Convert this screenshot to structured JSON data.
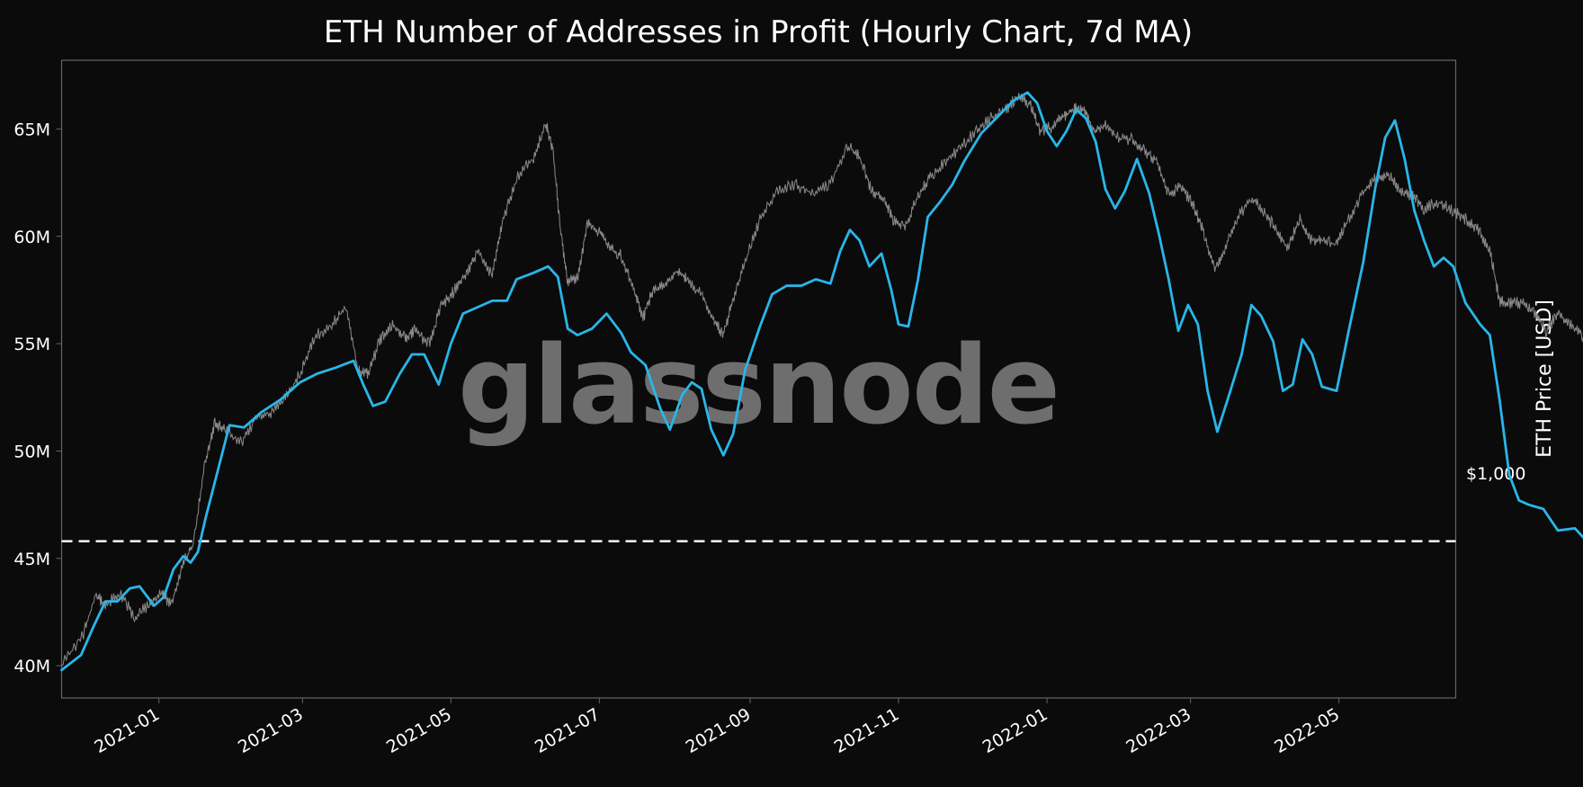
{
  "chart_data": {
    "type": "line",
    "title": "ETH Number of Addresses in Profit (Hourly Chart, 7d MA)",
    "watermark": "glassnode",
    "x_start": "2020-11-22",
    "x_end": "2022-06-18",
    "x_tick_labels": [
      "2021-01",
      "2021-03",
      "2021-05",
      "2021-07",
      "2021-09",
      "2021-11",
      "2022-01",
      "2022-03",
      "2022-05"
    ],
    "y_left": {
      "ylim": [
        38.5,
        68.2
      ],
      "ticks": [
        40,
        45,
        50,
        55,
        60,
        65
      ],
      "tick_labels": [
        "40M",
        "45M",
        "50M",
        "55M",
        "60M",
        "65M"
      ]
    },
    "y_right": {
      "label": "ETH Price [USD]",
      "ticks": [
        {
          "label": "$1,000",
          "value": 1000
        }
      ]
    },
    "threshold": {
      "value": 45.8,
      "style": "dashed",
      "color": "#ffffff"
    },
    "grid": false,
    "colors": {
      "addresses": "#29b6e9",
      "price": "#8a8a8a",
      "background": "#0b0b0b"
    },
    "series": [
      {
        "id": "addresses",
        "points": [
          [
            "2020-11-22",
            39.8
          ],
          [
            "2020-11-30",
            40.5
          ],
          [
            "2020-12-05",
            41.8
          ],
          [
            "2020-12-10",
            43.0
          ],
          [
            "2020-12-15",
            43.0
          ],
          [
            "2020-12-20",
            43.6
          ],
          [
            "2020-12-24",
            43.7
          ],
          [
            "2020-12-30",
            42.8
          ],
          [
            "2021-01-03",
            43.2
          ],
          [
            "2021-01-07",
            44.5
          ],
          [
            "2021-01-11",
            45.1
          ],
          [
            "2021-01-14",
            44.8
          ],
          [
            "2021-01-17",
            45.3
          ],
          [
            "2021-01-20",
            46.8
          ],
          [
            "2021-01-25",
            49.0
          ],
          [
            "2021-01-30",
            51.2
          ],
          [
            "2021-02-05",
            51.1
          ],
          [
            "2021-02-12",
            51.8
          ],
          [
            "2021-02-20",
            52.4
          ],
          [
            "2021-02-28",
            53.2
          ],
          [
            "2021-03-07",
            53.6
          ],
          [
            "2021-03-15",
            53.9
          ],
          [
            "2021-03-22",
            54.2
          ],
          [
            "2021-03-26",
            53.1
          ],
          [
            "2021-03-30",
            52.1
          ],
          [
            "2021-04-04",
            52.3
          ],
          [
            "2021-04-10",
            53.6
          ],
          [
            "2021-04-15",
            54.5
          ],
          [
            "2021-04-20",
            54.5
          ],
          [
            "2021-04-26",
            53.1
          ],
          [
            "2021-05-01",
            55.0
          ],
          [
            "2021-05-06",
            56.4
          ],
          [
            "2021-05-12",
            56.7
          ],
          [
            "2021-05-18",
            57.0
          ],
          [
            "2021-05-24",
            57.0
          ],
          [
            "2021-05-28",
            58.0
          ],
          [
            "2021-06-04",
            58.3
          ],
          [
            "2021-06-10",
            58.6
          ],
          [
            "2021-06-14",
            58.1
          ],
          [
            "2021-06-18",
            55.7
          ],
          [
            "2021-06-22",
            55.4
          ],
          [
            "2021-06-28",
            55.7
          ],
          [
            "2021-07-04",
            56.4
          ],
          [
            "2021-07-10",
            55.5
          ],
          [
            "2021-07-14",
            54.6
          ],
          [
            "2021-07-20",
            54.0
          ],
          [
            "2021-07-26",
            52.0
          ],
          [
            "2021-07-30",
            51.0
          ],
          [
            "2021-08-04",
            52.6
          ],
          [
            "2021-08-08",
            53.2
          ],
          [
            "2021-08-12",
            52.9
          ],
          [
            "2021-08-16",
            51.0
          ],
          [
            "2021-08-21",
            49.8
          ],
          [
            "2021-08-25",
            50.8
          ],
          [
            "2021-08-30",
            53.8
          ],
          [
            "2021-09-05",
            55.8
          ],
          [
            "2021-09-10",
            57.3
          ],
          [
            "2021-09-16",
            57.7
          ],
          [
            "2021-09-22",
            57.7
          ],
          [
            "2021-09-28",
            58.0
          ],
          [
            "2021-10-04",
            57.8
          ],
          [
            "2021-10-08",
            59.3
          ],
          [
            "2021-10-12",
            60.3
          ],
          [
            "2021-10-16",
            59.8
          ],
          [
            "2021-10-20",
            58.6
          ],
          [
            "2021-10-25",
            59.2
          ],
          [
            "2021-10-29",
            57.5
          ],
          [
            "2021-11-01",
            55.9
          ],
          [
            "2021-11-05",
            55.8
          ],
          [
            "2021-11-09",
            58.0
          ],
          [
            "2021-11-13",
            60.9
          ],
          [
            "2021-11-18",
            61.6
          ],
          [
            "2021-11-23",
            62.4
          ],
          [
            "2021-11-28",
            63.5
          ],
          [
            "2021-12-05",
            64.8
          ],
          [
            "2021-12-12",
            65.6
          ],
          [
            "2021-12-18",
            66.3
          ],
          [
            "2021-12-24",
            66.7
          ],
          [
            "2021-12-28",
            66.2
          ],
          [
            "2022-01-01",
            64.9
          ],
          [
            "2022-01-05",
            64.2
          ],
          [
            "2022-01-09",
            64.9
          ],
          [
            "2022-01-13",
            65.9
          ],
          [
            "2022-01-17",
            65.5
          ],
          [
            "2022-01-21",
            64.4
          ],
          [
            "2022-01-25",
            62.2
          ],
          [
            "2022-01-29",
            61.3
          ],
          [
            "2022-02-02",
            62.1
          ],
          [
            "2022-02-07",
            63.6
          ],
          [
            "2022-02-12",
            62.0
          ],
          [
            "2022-02-16",
            60.1
          ],
          [
            "2022-02-20",
            58.0
          ],
          [
            "2022-02-24",
            55.6
          ],
          [
            "2022-02-28",
            56.8
          ],
          [
            "2022-03-04",
            55.9
          ],
          [
            "2022-03-08",
            52.8
          ],
          [
            "2022-03-12",
            50.9
          ],
          [
            "2022-03-16",
            52.3
          ],
          [
            "2022-03-22",
            54.5
          ],
          [
            "2022-03-26",
            56.8
          ],
          [
            "2022-03-30",
            56.3
          ],
          [
            "2022-04-04",
            55.1
          ],
          [
            "2022-04-08",
            52.8
          ],
          [
            "2022-04-12",
            53.1
          ],
          [
            "2022-04-16",
            55.2
          ],
          [
            "2022-04-20",
            54.5
          ],
          [
            "2022-04-24",
            53.0
          ],
          [
            "2022-04-30",
            52.8
          ],
          [
            "2022-05-05",
            55.6
          ],
          [
            "2022-05-11",
            58.8
          ],
          [
            "2022-05-16",
            62.3
          ],
          [
            "2022-05-20",
            64.6
          ],
          [
            "2022-05-24",
            65.4
          ],
          [
            "2022-05-28",
            63.6
          ],
          [
            "2022-06-01",
            61.2
          ],
          [
            "2022-06-05",
            59.8
          ],
          [
            "2022-06-09",
            58.6
          ],
          [
            "2022-06-13",
            59.0
          ],
          [
            "2022-06-17",
            58.6
          ],
          [
            "2022-06-22",
            56.9
          ],
          [
            "2022-06-28",
            55.9
          ],
          [
            "2022-07-02",
            55.4
          ],
          [
            "2022-07-06",
            52.4
          ],
          [
            "2022-07-10",
            48.9
          ],
          [
            "2022-07-14",
            47.7
          ],
          [
            "2022-07-18",
            47.5
          ],
          [
            "2022-07-24",
            47.3
          ],
          [
            "2022-07-30",
            46.3
          ],
          [
            "2022-08-06",
            46.4
          ],
          [
            "2022-08-10",
            45.9
          ],
          [
            "2022-08-13",
            45.8
          ]
        ]
      },
      {
        "id": "price",
        "points": [
          [
            "2020-11-22",
            40.0
          ],
          [
            "2020-12-01",
            41.5
          ],
          [
            "2020-12-06",
            43.3
          ],
          [
            "2020-12-10",
            42.8
          ],
          [
            "2020-12-16",
            43.4
          ],
          [
            "2020-12-22",
            42.2
          ],
          [
            "2020-12-28",
            42.9
          ],
          [
            "2021-01-02",
            43.4
          ],
          [
            "2021-01-06",
            42.8
          ],
          [
            "2021-01-11",
            44.8
          ],
          [
            "2021-01-15",
            45.6
          ],
          [
            "2021-01-20",
            49.5
          ],
          [
            "2021-01-24",
            51.3
          ],
          [
            "2021-01-28",
            51.0
          ],
          [
            "2021-02-04",
            50.4
          ],
          [
            "2021-02-10",
            51.6
          ],
          [
            "2021-02-16",
            51.8
          ],
          [
            "2021-02-22",
            52.5
          ],
          [
            "2021-02-28",
            53.6
          ],
          [
            "2021-03-06",
            55.3
          ],
          [
            "2021-03-13",
            55.9
          ],
          [
            "2021-03-19",
            56.7
          ],
          [
            "2021-03-24",
            53.7
          ],
          [
            "2021-03-28",
            53.6
          ],
          [
            "2021-04-02",
            55.2
          ],
          [
            "2021-04-07",
            55.9
          ],
          [
            "2021-04-12",
            55.3
          ],
          [
            "2021-04-16",
            55.6
          ],
          [
            "2021-04-22",
            55.0
          ],
          [
            "2021-04-27",
            56.8
          ],
          [
            "2021-05-02",
            57.4
          ],
          [
            "2021-05-07",
            58.2
          ],
          [
            "2021-05-12",
            59.3
          ],
          [
            "2021-05-18",
            58.2
          ],
          [
            "2021-05-22",
            60.6
          ],
          [
            "2021-05-28",
            62.7
          ],
          [
            "2021-06-04",
            63.7
          ],
          [
            "2021-06-09",
            65.3
          ],
          [
            "2021-06-12",
            64.0
          ],
          [
            "2021-06-15",
            60.3
          ],
          [
            "2021-06-18",
            57.9
          ],
          [
            "2021-06-22",
            58.0
          ],
          [
            "2021-06-26",
            60.6
          ],
          [
            "2021-07-01",
            60.2
          ],
          [
            "2021-07-05",
            59.5
          ],
          [
            "2021-07-10",
            59.1
          ],
          [
            "2021-07-15",
            57.6
          ],
          [
            "2021-07-19",
            56.2
          ],
          [
            "2021-07-23",
            57.5
          ],
          [
            "2021-07-28",
            57.8
          ],
          [
            "2021-08-02",
            58.4
          ],
          [
            "2021-08-06",
            58.0
          ],
          [
            "2021-08-12",
            57.3
          ],
          [
            "2021-08-17",
            56.1
          ],
          [
            "2021-08-21",
            55.4
          ],
          [
            "2021-08-25",
            57.1
          ],
          [
            "2021-08-30",
            58.8
          ],
          [
            "2021-09-05",
            60.8
          ],
          [
            "2021-09-12",
            62.1
          ],
          [
            "2021-09-20",
            62.4
          ],
          [
            "2021-09-27",
            62.0
          ],
          [
            "2021-10-04",
            62.5
          ],
          [
            "2021-10-11",
            64.2
          ],
          [
            "2021-10-16",
            63.7
          ],
          [
            "2021-10-21",
            62.1
          ],
          [
            "2021-10-26",
            61.8
          ],
          [
            "2021-10-30",
            60.7
          ],
          [
            "2021-11-04",
            60.5
          ],
          [
            "2021-11-09",
            61.9
          ],
          [
            "2021-11-14",
            62.8
          ],
          [
            "2021-11-20",
            63.4
          ],
          [
            "2021-11-26",
            64.1
          ],
          [
            "2021-12-03",
            64.9
          ],
          [
            "2021-12-09",
            65.5
          ],
          [
            "2021-12-15",
            65.9
          ],
          [
            "2021-12-20",
            66.5
          ],
          [
            "2021-12-25",
            66.2
          ],
          [
            "2021-12-29",
            64.9
          ],
          [
            "2022-01-03",
            65.1
          ],
          [
            "2022-01-08",
            65.6
          ],
          [
            "2022-01-12",
            65.9
          ],
          [
            "2022-01-16",
            66.0
          ],
          [
            "2022-01-20",
            64.8
          ],
          [
            "2022-01-25",
            65.2
          ],
          [
            "2022-01-30",
            64.6
          ],
          [
            "2022-02-05",
            64.5
          ],
          [
            "2022-02-10",
            64.0
          ],
          [
            "2022-02-15",
            63.5
          ],
          [
            "2022-02-20",
            62.0
          ],
          [
            "2022-02-25",
            62.3
          ],
          [
            "2022-03-02",
            61.5
          ],
          [
            "2022-03-06",
            60.3
          ],
          [
            "2022-03-11",
            58.5
          ],
          [
            "2022-03-15",
            59.4
          ],
          [
            "2022-03-20",
            60.8
          ],
          [
            "2022-03-26",
            61.8
          ],
          [
            "2022-03-31",
            61.2
          ],
          [
            "2022-04-05",
            60.3
          ],
          [
            "2022-04-10",
            59.4
          ],
          [
            "2022-04-15",
            60.9
          ],
          [
            "2022-04-19",
            59.8
          ],
          [
            "2022-04-24",
            59.8
          ],
          [
            "2022-04-30",
            59.6
          ],
          [
            "2022-05-05",
            60.8
          ],
          [
            "2022-05-11",
            62.1
          ],
          [
            "2022-05-16",
            62.7
          ],
          [
            "2022-05-21",
            62.9
          ],
          [
            "2022-05-26",
            62.2
          ],
          [
            "2022-05-31",
            61.9
          ],
          [
            "2022-06-05",
            61.3
          ],
          [
            "2022-06-11",
            61.6
          ],
          [
            "2022-06-17",
            61.2
          ],
          [
            "2022-06-22",
            60.8
          ],
          [
            "2022-06-27",
            60.3
          ],
          [
            "2022-07-02",
            59.4
          ],
          [
            "2022-07-06",
            57.0
          ],
          [
            "2022-07-10",
            56.9
          ],
          [
            "2022-07-15",
            56.9
          ],
          [
            "2022-07-20",
            56.5
          ],
          [
            "2022-07-25",
            55.6
          ],
          [
            "2022-07-30",
            56.4
          ],
          [
            "2022-08-04",
            55.9
          ],
          [
            "2022-08-09",
            55.4
          ],
          [
            "2022-08-13",
            53.7
          ]
        ]
      }
    ]
  }
}
